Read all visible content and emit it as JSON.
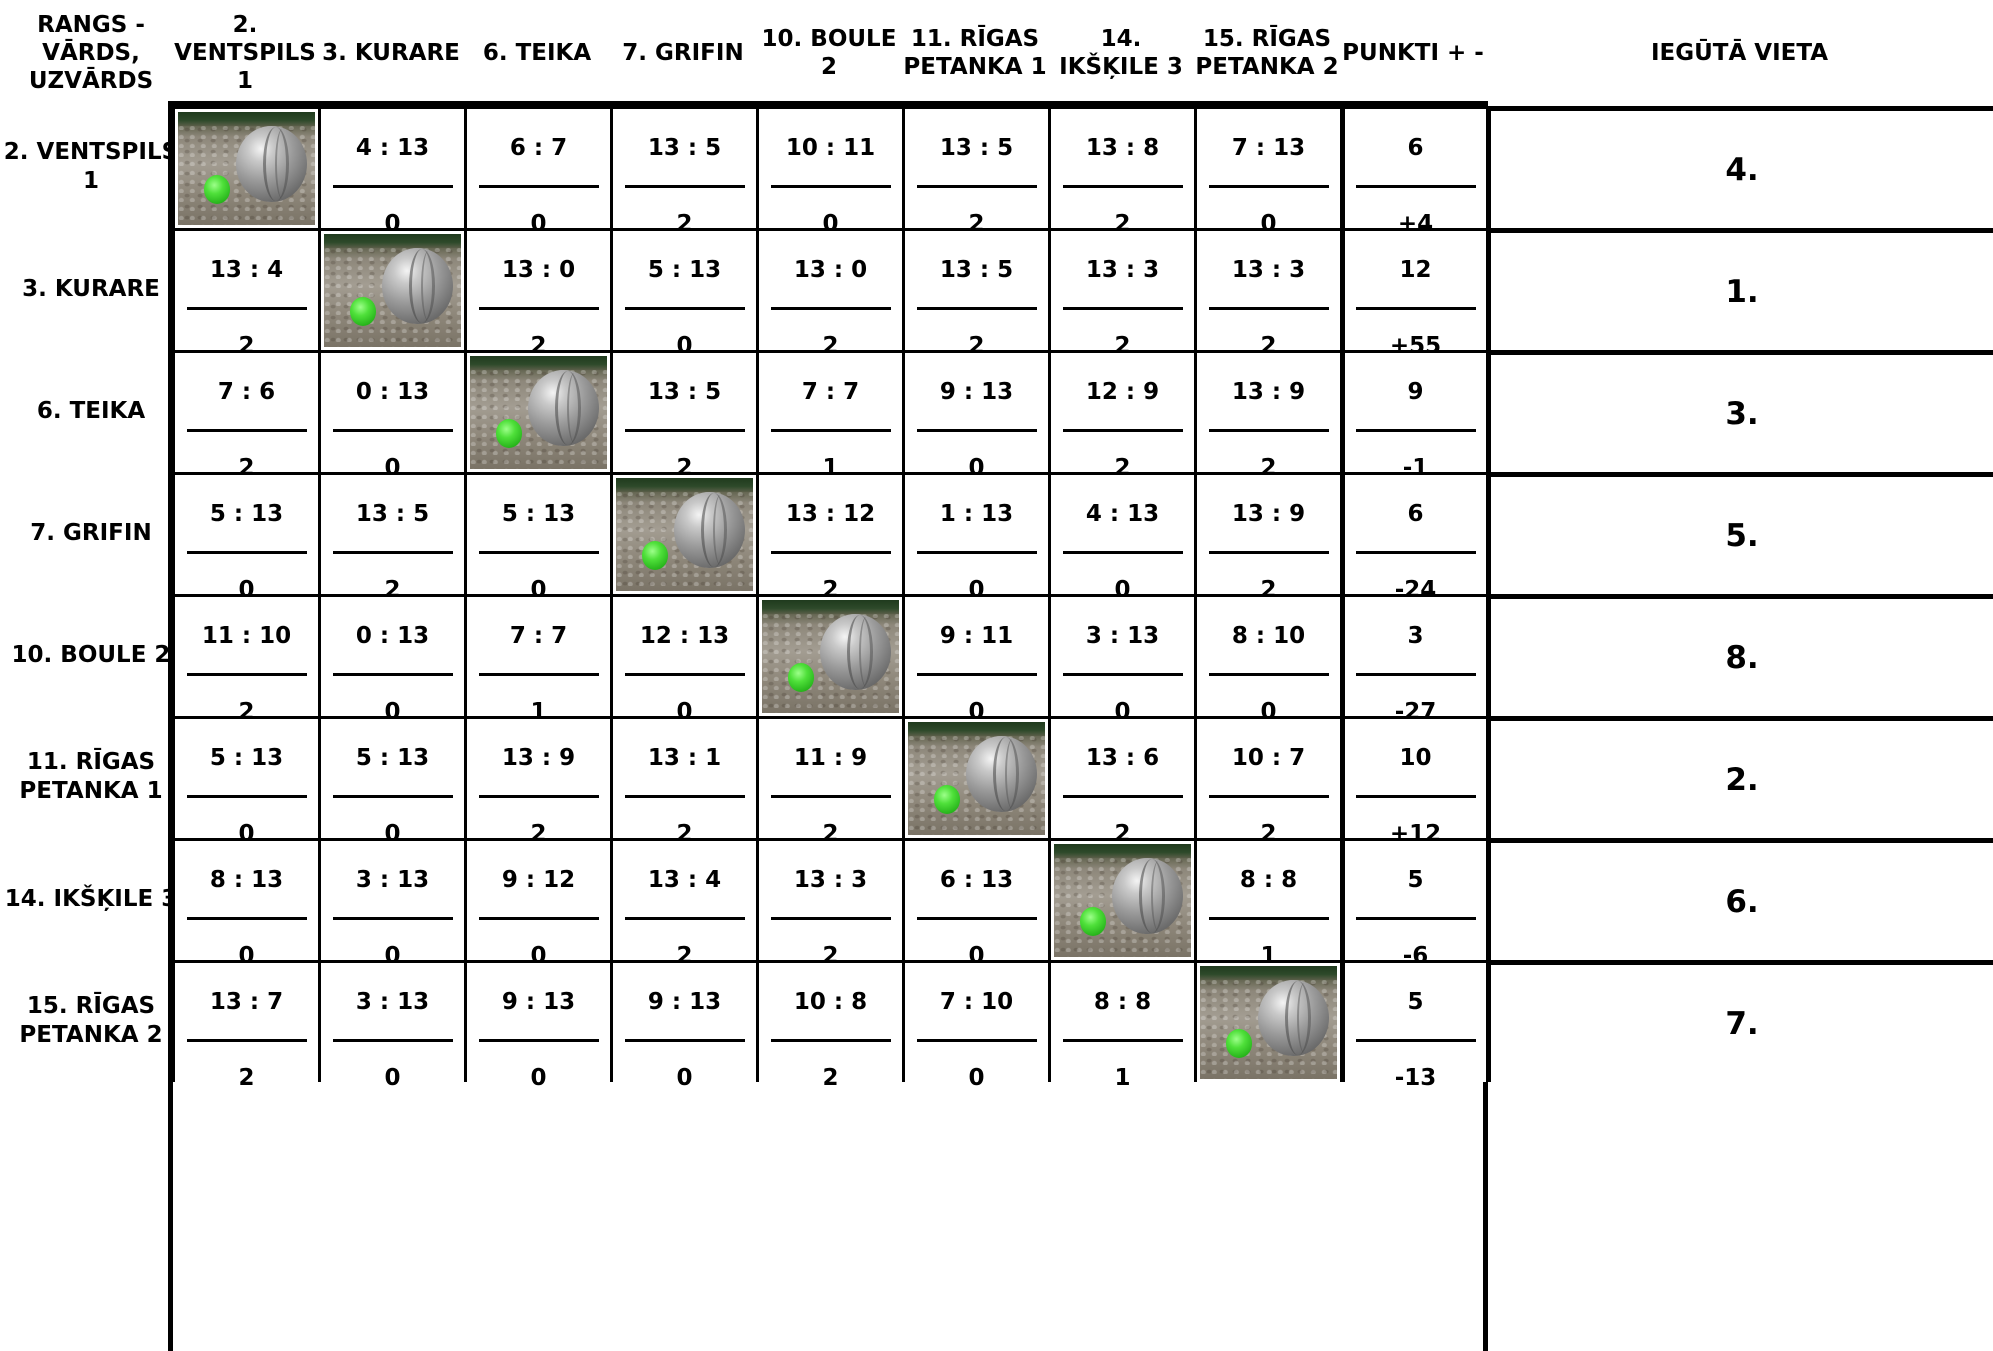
{
  "header": {
    "corner": "RANGS - VĀRDS, UZVĀRDS",
    "teams": [
      "2. VENTSPILS 1",
      "3. KURARE",
      "6. TEIKA",
      "7. GRIFIN",
      "10. BOULE 2",
      "11. RĪGAS PETANKA 1",
      "14. IKŠĶILE 3",
      "15. RĪGAS PETANKA 2"
    ],
    "points": "PUNKTI + -",
    "place": "IEGŪTĀ VIETA"
  },
  "rows": [
    {
      "team": "2. VENTSPILS 1",
      "results": [
        null,
        {
          "score": "4 : 13",
          "pts": "0"
        },
        {
          "score": "6 : 7",
          "pts": "0"
        },
        {
          "score": "13 : 5",
          "pts": "2"
        },
        {
          "score": "10 : 11",
          "pts": "0"
        },
        {
          "score": "13 : 5",
          "pts": "2"
        },
        {
          "score": "13 : 8",
          "pts": "2"
        },
        {
          "score": "7 : 13",
          "pts": "0"
        }
      ],
      "points": "6",
      "diff": "+4",
      "place": "4."
    },
    {
      "team": "3. KURARE",
      "results": [
        {
          "score": "13 : 4",
          "pts": "2"
        },
        null,
        {
          "score": "13 : 0",
          "pts": "2"
        },
        {
          "score": "5 : 13",
          "pts": "0"
        },
        {
          "score": "13 : 0",
          "pts": "2"
        },
        {
          "score": "13 : 5",
          "pts": "2"
        },
        {
          "score": "13 : 3",
          "pts": "2"
        },
        {
          "score": "13 : 3",
          "pts": "2"
        }
      ],
      "points": "12",
      "diff": "+55",
      "place": "1."
    },
    {
      "team": "6. TEIKA",
      "results": [
        {
          "score": "7 : 6",
          "pts": "2"
        },
        {
          "score": "0 : 13",
          "pts": "0"
        },
        null,
        {
          "score": "13 : 5",
          "pts": "2"
        },
        {
          "score": "7 : 7",
          "pts": "1"
        },
        {
          "score": "9 : 13",
          "pts": "0"
        },
        {
          "score": "12 : 9",
          "pts": "2"
        },
        {
          "score": "13 : 9",
          "pts": "2"
        }
      ],
      "points": "9",
      "diff": "-1",
      "place": "3."
    },
    {
      "team": "7. GRIFIN",
      "results": [
        {
          "score": "5 : 13",
          "pts": "0"
        },
        {
          "score": "13 : 5",
          "pts": "2"
        },
        {
          "score": "5 : 13",
          "pts": "0"
        },
        null,
        {
          "score": "13 : 12",
          "pts": "2"
        },
        {
          "score": "1 : 13",
          "pts": "0"
        },
        {
          "score": "4 : 13",
          "pts": "0"
        },
        {
          "score": "13 : 9",
          "pts": "2"
        }
      ],
      "points": "6",
      "diff": "-24",
      "place": "5."
    },
    {
      "team": "10. BOULE 2",
      "results": [
        {
          "score": "11 : 10",
          "pts": "2"
        },
        {
          "score": "0 : 13",
          "pts": "0"
        },
        {
          "score": "7 : 7",
          "pts": "1"
        },
        {
          "score": "12 : 13",
          "pts": "0"
        },
        null,
        {
          "score": "9 : 11",
          "pts": "0"
        },
        {
          "score": "3 : 13",
          "pts": "0"
        },
        {
          "score": "8 : 10",
          "pts": "0"
        }
      ],
      "points": "3",
      "diff": "-27",
      "place": "8."
    },
    {
      "team": "11. RĪGAS PETANKA 1",
      "results": [
        {
          "score": "5 : 13",
          "pts": "0"
        },
        {
          "score": "5 : 13",
          "pts": "0"
        },
        {
          "score": "13 : 9",
          "pts": "2"
        },
        {
          "score": "13 : 1",
          "pts": "2"
        },
        {
          "score": "11 : 9",
          "pts": "2"
        },
        null,
        {
          "score": "13 : 6",
          "pts": "2"
        },
        {
          "score": "10 : 7",
          "pts": "2"
        }
      ],
      "points": "10",
      "diff": "+12",
      "place": "2."
    },
    {
      "team": "14. IKŠĶILE 3",
      "results": [
        {
          "score": "8 : 13",
          "pts": "0"
        },
        {
          "score": "3 : 13",
          "pts": "0"
        },
        {
          "score": "9 : 12",
          "pts": "0"
        },
        {
          "score": "13 : 4",
          "pts": "2"
        },
        {
          "score": "13 : 3",
          "pts": "2"
        },
        {
          "score": "6 : 13",
          "pts": "0"
        },
        null,
        {
          "score": "8 : 8",
          "pts": "1"
        }
      ],
      "points": "5",
      "diff": "-6",
      "place": "6."
    },
    {
      "team": "15. RĪGAS PETANKA 2",
      "results": [
        {
          "score": "13 : 7",
          "pts": "2"
        },
        {
          "score": "3 : 13",
          "pts": "0"
        },
        {
          "score": "9 : 13",
          "pts": "0"
        },
        {
          "score": "9 : 13",
          "pts": "0"
        },
        {
          "score": "10 : 8",
          "pts": "2"
        },
        {
          "score": "7 : 10",
          "pts": "0"
        },
        {
          "score": "8 : 8",
          "pts": "1"
        },
        null
      ],
      "points": "5",
      "diff": "-13",
      "place": "7."
    }
  ]
}
